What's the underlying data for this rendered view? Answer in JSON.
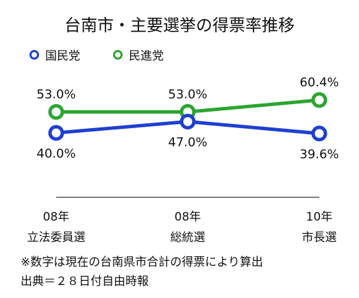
{
  "chart_data": {
    "type": "line",
    "title": "台南市・主要選挙の得票率推移",
    "categories": [
      {
        "line1": "08年",
        "line2": "立法委員選"
      },
      {
        "line1": "08年",
        "line2": "総統選"
      },
      {
        "line1": "10年",
        "line2": "市長選"
      }
    ],
    "series": [
      {
        "name": "国民党",
        "color": "#1f3fd1",
        "values": [
          40.0,
          47.0,
          39.6
        ],
        "labels": [
          "40.0%",
          "47.0%",
          "39.6%"
        ]
      },
      {
        "name": "民進党",
        "color": "#2aa52f",
        "values": [
          53.0,
          53.0,
          60.4
        ],
        "labels": [
          "53.0%",
          "53.0%",
          "60.4%"
        ]
      }
    ],
    "legend_position": "top-left",
    "grid": false
  },
  "notes": {
    "footnote": "※数字は現在の台南県市合計の得票により算出",
    "source": "出典＝２８日付自由時報"
  }
}
